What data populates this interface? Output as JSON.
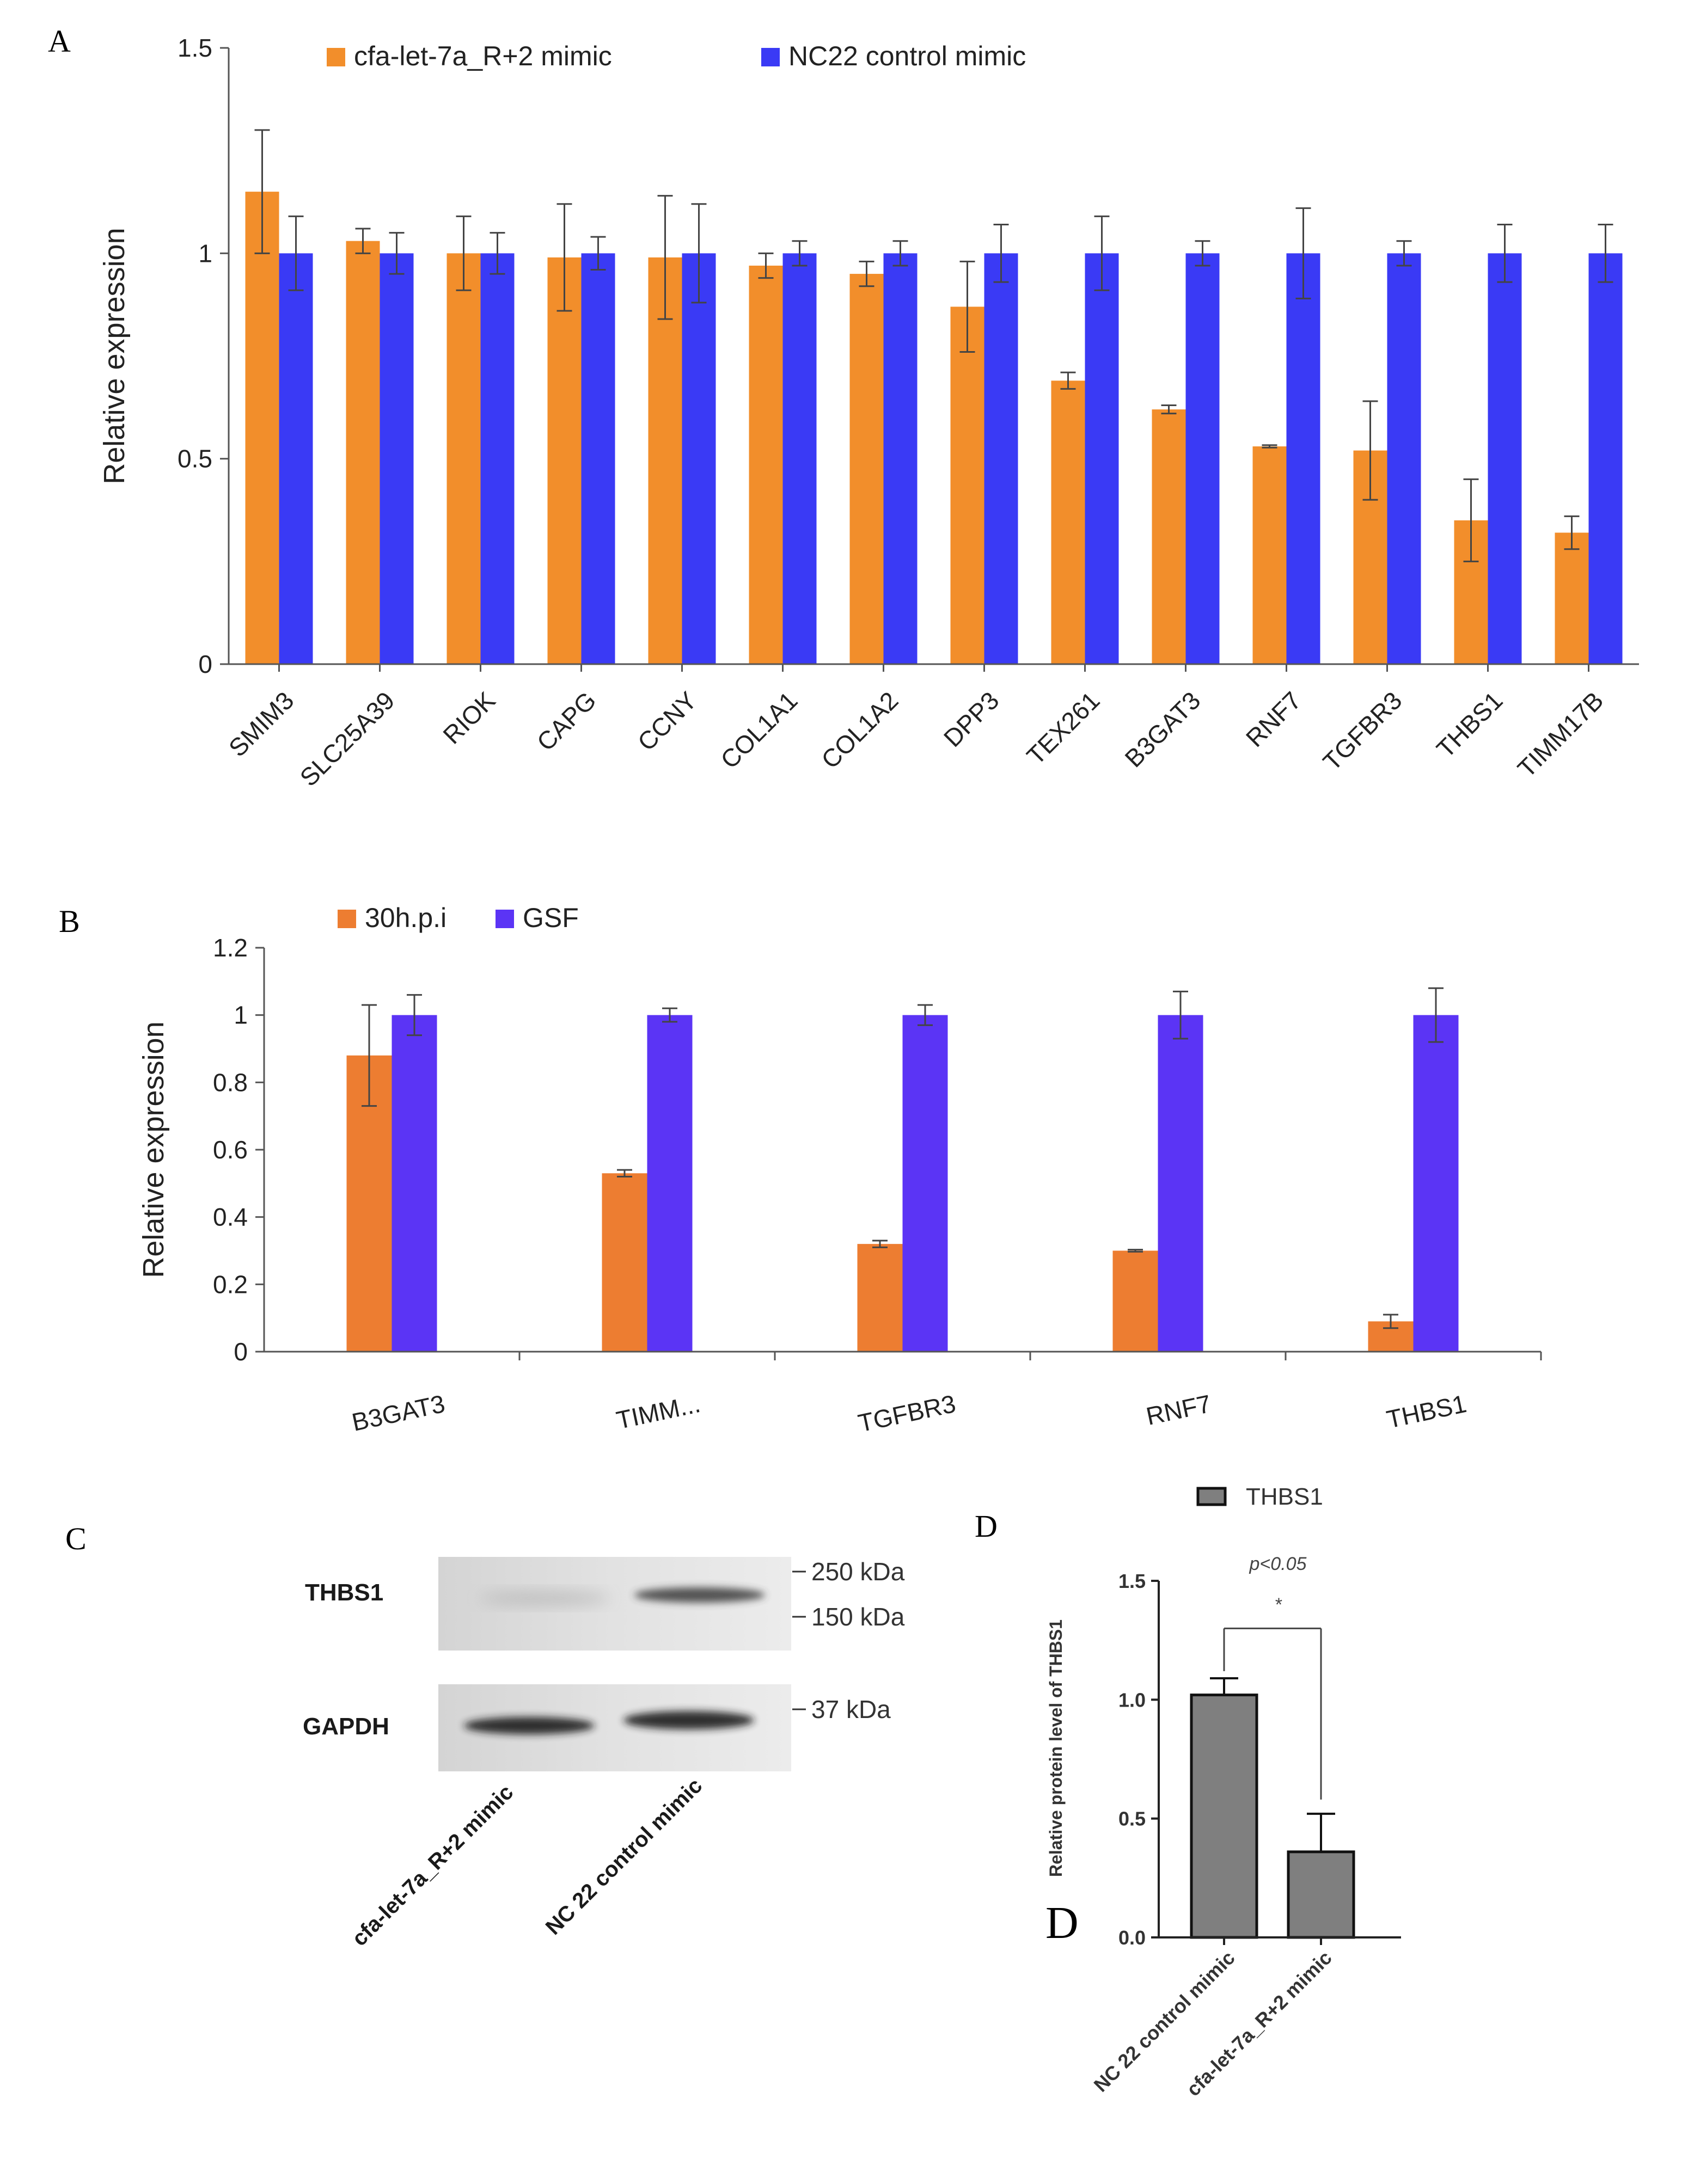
{
  "panels": {
    "a": "A",
    "b": "B",
    "c": "C",
    "d": "D",
    "d_overlay": "D"
  },
  "chart_data": [
    {
      "id": "A",
      "type": "bar",
      "title": "",
      "xlabel": "",
      "ylabel": "Relative expression",
      "ylim": [
        0,
        1.5
      ],
      "yticks": [
        0,
        0.5,
        1,
        1.5
      ],
      "ytick_labels": [
        "0",
        "0.5",
        "1",
        "1.5"
      ],
      "grid": false,
      "legend_position": "top-left",
      "categories": [
        "SMIM3",
        "SLC25A39",
        "RIOK",
        "CAPG",
        "CCNY",
        "COL1A1",
        "COL1A2",
        "DPP3",
        "TEX261",
        "B3GAT3",
        "RNF7",
        "TGFBR3",
        "THBS1",
        "TIMM17B"
      ],
      "series": [
        {
          "name": "cfa-let-7a_R+2 mimic",
          "color": "#f28e2b",
          "values": [
            1.15,
            1.03,
            1.0,
            0.99,
            0.99,
            0.97,
            0.95,
            0.87,
            0.69,
            0.62,
            0.53,
            0.52,
            0.35,
            0.32
          ],
          "errors": [
            0.15,
            0.03,
            0.09,
            0.13,
            0.15,
            0.03,
            0.03,
            0.11,
            0.02,
            0.01,
            0.003,
            0.12,
            0.1,
            0.04
          ]
        },
        {
          "name": "NC22 control mimic",
          "color": "#3a3af5",
          "values": [
            1,
            1,
            1,
            1,
            1,
            1,
            1,
            1,
            1,
            1,
            1,
            1,
            1,
            1
          ],
          "errors": [
            0.09,
            0.05,
            0.05,
            0.04,
            0.12,
            0.03,
            0.03,
            0.07,
            0.09,
            0.03,
            0.11,
            0.03,
            0.07,
            0.07
          ]
        }
      ]
    },
    {
      "id": "B",
      "type": "bar",
      "title": "",
      "xlabel": "",
      "ylabel": "Relative expression",
      "ylim": [
        0,
        1.2
      ],
      "yticks": [
        0,
        0.2,
        0.4,
        0.6,
        0.8,
        1,
        1.2
      ],
      "ytick_labels": [
        "0",
        "0.2",
        "0.4",
        "0.6",
        "0.8",
        "1",
        "1.2"
      ],
      "grid": false,
      "legend_position": "top-left",
      "categories": [
        "B3GAT3",
        "TIMM...",
        "TGFBR3",
        "RNF7",
        "THBS1"
      ],
      "series": [
        {
          "name": "30h.p.i",
          "color": "#ed7d31",
          "values": [
            0.88,
            0.53,
            0.32,
            0.3,
            0.09
          ],
          "errors": [
            0.15,
            0.01,
            0.01,
            0.003,
            0.02
          ]
        },
        {
          "name": "GSF",
          "color": "#5b34f5",
          "values": [
            1,
            1,
            1,
            1,
            1
          ],
          "errors": [
            0.06,
            0.02,
            0.03,
            0.07,
            0.08
          ]
        }
      ]
    },
    {
      "id": "D",
      "type": "bar",
      "title": "",
      "xlabel": "",
      "ylabel": "Relative protein level of THBS1",
      "ylim": [
        0,
        1.5
      ],
      "yticks": [
        0,
        0.5,
        1,
        1.5
      ],
      "ytick_labels": [
        "0.0",
        "0.5",
        "1.0",
        "1.5"
      ],
      "grid": false,
      "legend_position": "top",
      "categories": [
        "NC 22 control mimic",
        "cfa-let-7a_R+2 mimic"
      ],
      "series": [
        {
          "name": "THBS1",
          "color": "#7f7f7f",
          "values": [
            1.02,
            0.36
          ],
          "errors": [
            0.07,
            0.16
          ]
        }
      ],
      "annotations": [
        "p<0.05",
        "*"
      ]
    }
  ],
  "blot": {
    "rows": [
      {
        "label": "THBS1",
        "markers": [
          "250 kDa",
          "150 kDa"
        ]
      },
      {
        "label": "GAPDH",
        "markers": [
          "37 kDa"
        ]
      }
    ],
    "lanes": [
      "cfa-let-7a_R+2 mimic",
      "NC 22 control mimic"
    ]
  }
}
